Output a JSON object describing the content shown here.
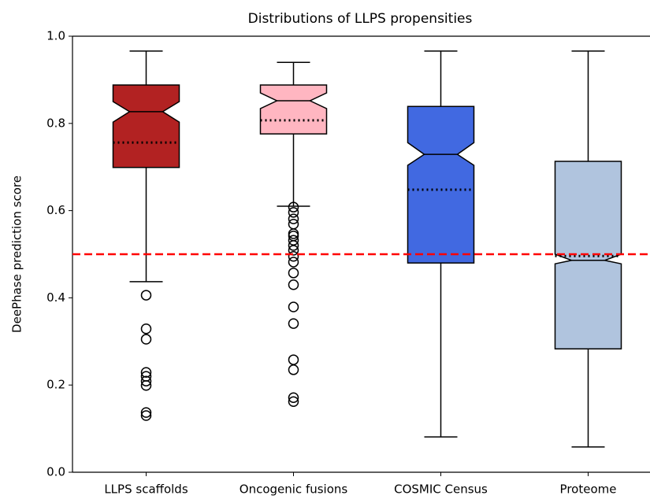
{
  "chart_data": {
    "type": "box",
    "title": "Distributions of LLPS propensities",
    "ylabel": "DeePhase prediction score",
    "categories": [
      "LLPS scaffolds",
      "Oncogenic fusions",
      "COSMIC Census",
      "Proteome"
    ],
    "colors": [
      "#b22222",
      "#ffb6c1",
      "#4169e1",
      "#b0c4de"
    ],
    "boxes": [
      {
        "whisker_low": 0.437,
        "q1": 0.699,
        "notch_low": 0.803,
        "median": 0.827,
        "notch_high": 0.85,
        "q3": 0.888,
        "whisker_high": 0.966,
        "mean": 0.756,
        "outliers": [
          0.406,
          0.329,
          0.305,
          0.229,
          0.22,
          0.209,
          0.199,
          0.137,
          0.13
        ]
      },
      {
        "whisker_low": 0.61,
        "q1": 0.776,
        "notch_low": 0.834,
        "median": 0.852,
        "notch_high": 0.87,
        "q3": 0.888,
        "whisker_high": 0.94,
        "mean": 0.807,
        "outliers": [
          0.608,
          0.596,
          0.581,
          0.569,
          0.547,
          0.542,
          0.532,
          0.52,
          0.509,
          0.495,
          0.482,
          0.457,
          0.43,
          0.379,
          0.341,
          0.258,
          0.235,
          0.171,
          0.162
        ]
      },
      {
        "whisker_low": 0.081,
        "q1": 0.48,
        "notch_low": 0.704,
        "median": 0.729,
        "notch_high": 0.756,
        "q3": 0.839,
        "whisker_high": 0.966,
        "mean": 0.648,
        "outliers": []
      },
      {
        "whisker_low": 0.058,
        "q1": 0.283,
        "notch_low": 0.478,
        "median": 0.486,
        "notch_high": 0.5,
        "q3": 0.713,
        "whisker_high": 0.966,
        "mean": 0.496,
        "outliers": []
      }
    ],
    "reference_line": {
      "value": 0.5,
      "color": "#ff0000"
    },
    "ylim": [
      0,
      1
    ],
    "yticks": [
      {
        "value": 0,
        "label": "0.0"
      },
      0.2,
      0.4,
      0.6,
      0.8,
      {
        "value": 1,
        "label": "1.0"
      }
    ],
    "grid": false
  }
}
